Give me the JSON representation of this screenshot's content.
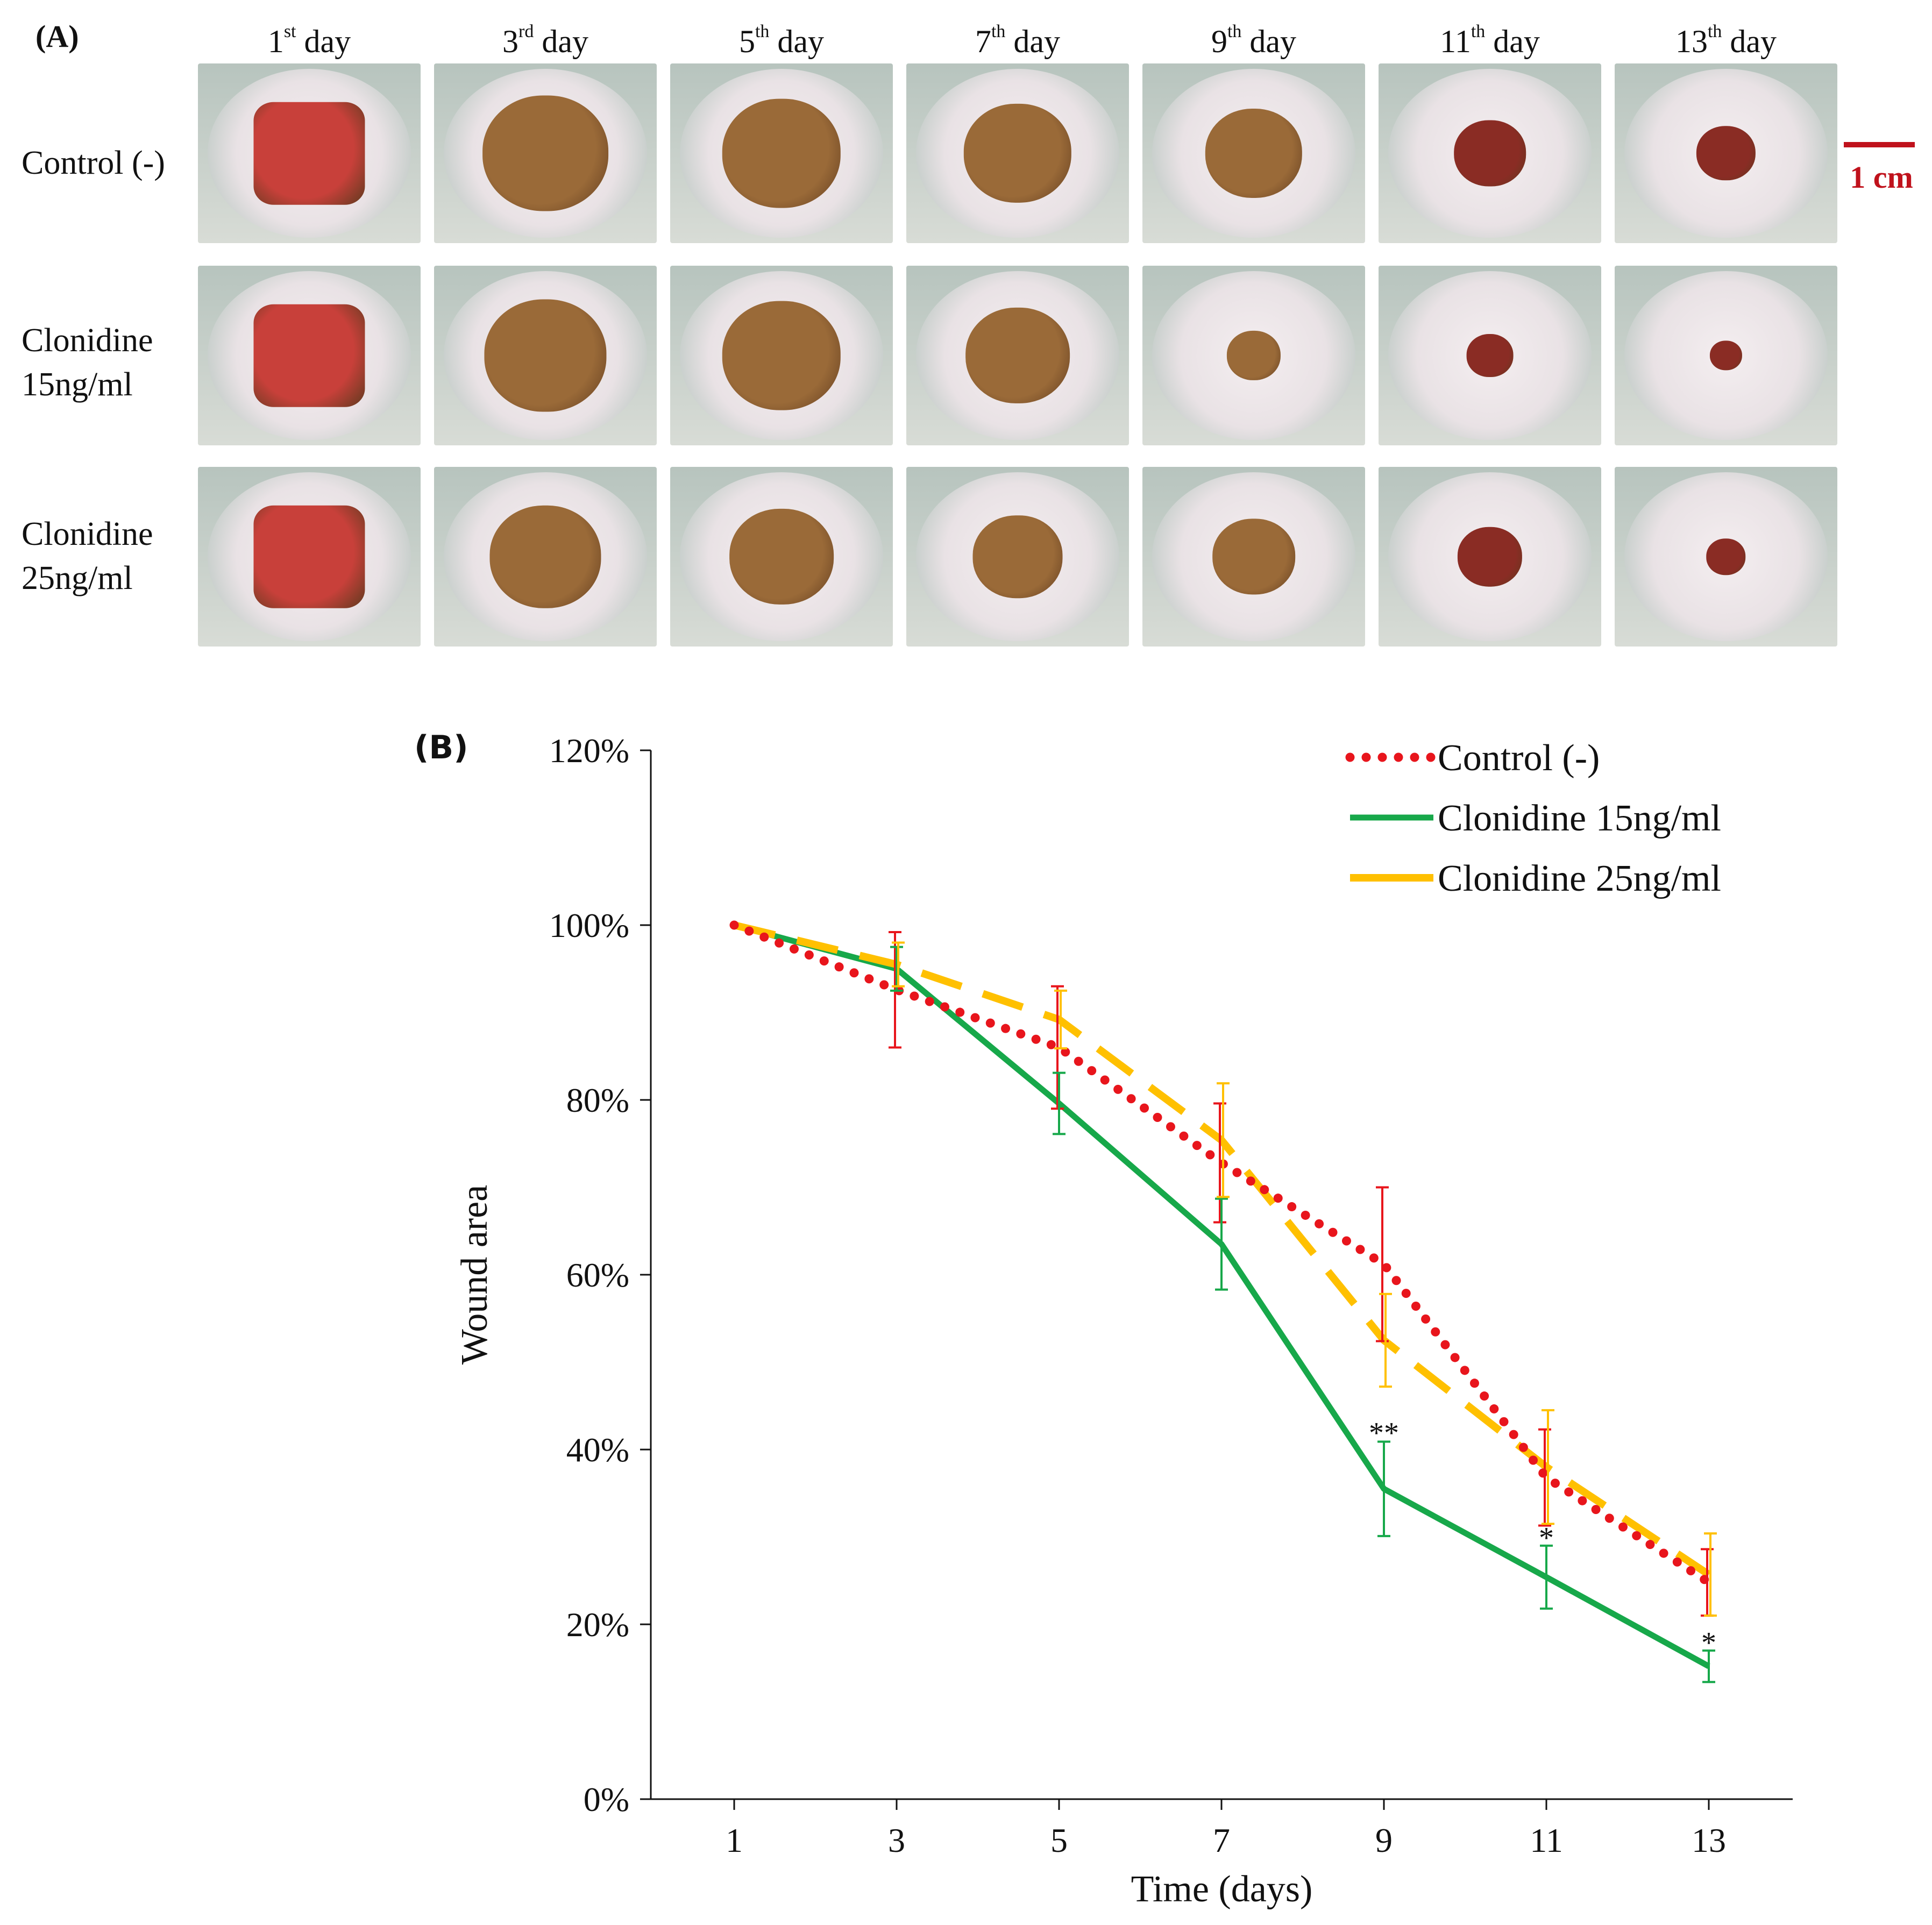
{
  "panel_a": {
    "label": "(A)",
    "days": [
      {
        "num": "1",
        "suffix": "st",
        "word": "day"
      },
      {
        "num": "3",
        "suffix": "rd",
        "word": "day"
      },
      {
        "num": "5",
        "suffix": "th",
        "word": "day"
      },
      {
        "num": "7",
        "suffix": "th",
        "word": "day"
      },
      {
        "num": "9",
        "suffix": "th",
        "word": "day"
      },
      {
        "num": "11",
        "suffix": "th",
        "word": "day"
      },
      {
        "num": "13",
        "suffix": "th",
        "word": "day"
      }
    ],
    "rows": [
      {
        "line1": "Control (-)",
        "line2": ""
      },
      {
        "line1": "Clonidine",
        "line2": "15ng/ml"
      },
      {
        "line1": "Clonidine",
        "line2": "25ng/ml"
      }
    ],
    "scale_bar_label": "1 cm",
    "wound_colors": {
      "fresh": "#c8403a",
      "scab": "#9a6a38",
      "healing": "#8a2c24"
    }
  },
  "panel_b": {
    "label": "(B)"
  },
  "chart_data": {
    "type": "line",
    "x": [
      1,
      3,
      5,
      7,
      9,
      11,
      13
    ],
    "xlabel": "Time (days)",
    "ylabel": "Wound area",
    "ylim": [
      0,
      120
    ],
    "yticks": [
      "0%",
      "20%",
      "40%",
      "60%",
      "80%",
      "100%",
      "120%"
    ],
    "xticks": [
      "1",
      "3",
      "5",
      "7",
      "9",
      "11",
      "13"
    ],
    "legend_position": "top-right",
    "series": [
      {
        "name": "Control (-)",
        "style": "dotted",
        "color": "#e8151c",
        "values": [
          100,
          92.6,
          86,
          72.8,
          61.2,
          36.8,
          24.8
        ],
        "errors": [
          0,
          6.6,
          7,
          6.8,
          8.8,
          5.5,
          3.8
        ]
      },
      {
        "name": "Clonidine 15ng/ml",
        "style": "solid",
        "color": "#17a84a",
        "values": [
          100,
          95,
          79.6,
          63.5,
          35.5,
          25.4,
          15.2
        ],
        "errors": [
          0,
          2.5,
          3.5,
          5.2,
          5.4,
          3.6,
          1.8
        ]
      },
      {
        "name": "Clonidine 25ng/ml",
        "style": "dashed",
        "color": "#ffc000",
        "values": [
          100,
          95.5,
          89.2,
          75.4,
          52.5,
          38,
          25.7
        ],
        "errors": [
          0,
          2.5,
          3.3,
          6.5,
          5.3,
          6.5,
          4.7
        ]
      }
    ],
    "annotations": [
      {
        "text": "**",
        "x": 9,
        "y": 42
      },
      {
        "text": "*",
        "x": 11,
        "y": 30
      },
      {
        "text": "*",
        "x": 13,
        "y": 18
      }
    ]
  }
}
